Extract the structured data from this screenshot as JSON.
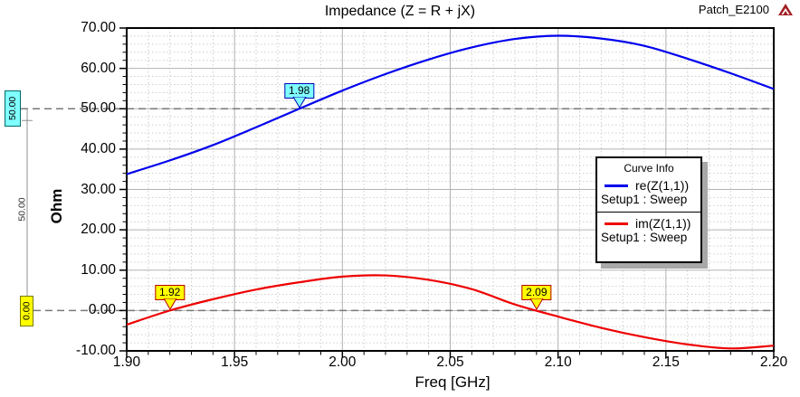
{
  "header": {
    "title": "Impedance (Z = R + jX)",
    "project": "Patch_E2100"
  },
  "legend": {
    "title": "Curve Info"
  },
  "annotations": {
    "ref_line_50": {
      "label": "50.00",
      "y": 50,
      "fill": "#7FFFFF",
      "border": "#006A6A"
    },
    "ref_line_0": {
      "label": "0.00",
      "y": 0,
      "fill": "#FFFF00",
      "border": "#7A7A00"
    },
    "delta_label": "50.00"
  },
  "markers": [
    {
      "label": "1.98",
      "x": 1.98,
      "y": 50,
      "fill": "#7FFFFF",
      "border": "#0000B4"
    },
    {
      "label": "1.92",
      "x": 1.92,
      "y": 0,
      "fill": "#FFFF00",
      "border": "#B40000"
    },
    {
      "label": "2.09",
      "x": 2.09,
      "y": 0,
      "fill": "#FFFF00",
      "border": "#B40000"
    }
  ],
  "chart_data": {
    "type": "line",
    "title": "Impedance (Z = R + jX)",
    "xlabel": "Freq [GHz]",
    "ylabel": "Ohm",
    "xlim": [
      1.9,
      2.2
    ],
    "ylim": [
      -10,
      70
    ],
    "xticks": [
      "1.90",
      "1.95",
      "2.00",
      "2.05",
      "2.10",
      "2.15",
      "2.20"
    ],
    "yticks": [
      "70.00",
      "60.00",
      "50.00",
      "40.00",
      "30.00",
      "20.00",
      "10.00",
      "0.00",
      "-10.00"
    ],
    "x_minor_step": 0.01,
    "y_minor_step": 2,
    "grid": true,
    "legend_position": "right-middle",
    "x": [
      1.9,
      1.92,
      1.94,
      1.96,
      1.98,
      2.0,
      2.02,
      2.04,
      2.06,
      2.08,
      2.1,
      2.12,
      2.14,
      2.16,
      2.18,
      2.2
    ],
    "series": [
      {
        "name": "re(Z(1,1))",
        "sub": "Setup1 : Sweep",
        "color": "#0000EE",
        "values": [
          33.8,
          37.2,
          41.0,
          45.4,
          50.0,
          54.5,
          58.6,
          62.2,
          65.2,
          67.3,
          68.1,
          67.4,
          65.6,
          62.4,
          58.8,
          54.9
        ]
      },
      {
        "name": "im(Z(1,1))",
        "sub": "Setup1 : Sweep",
        "color": "#EE0000",
        "values": [
          -3.5,
          0.0,
          2.8,
          5.2,
          7.0,
          8.4,
          8.7,
          7.6,
          5.3,
          1.5,
          -1.5,
          -4.3,
          -6.6,
          -8.4,
          -9.4,
          -8.7
        ]
      }
    ]
  }
}
